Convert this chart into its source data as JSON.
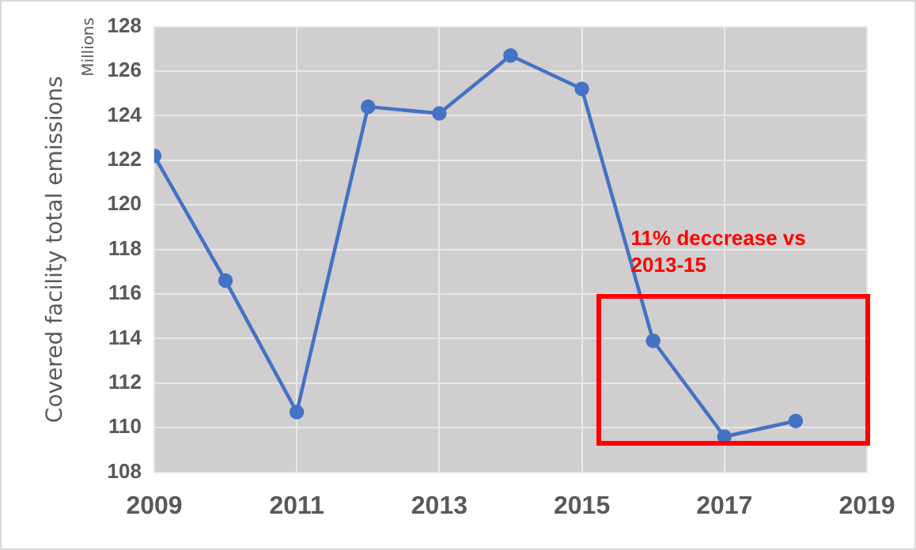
{
  "chart_data": {
    "type": "line",
    "ylabel": "Covered facility total emissions",
    "annotations": [
      "Millions",
      "11% deccrease vs 2013-15"
    ],
    "x": [
      2009,
      2010,
      2011,
      2012,
      2013,
      2014,
      2015,
      2016,
      2017,
      2018
    ],
    "series": [
      {
        "color": "#4472c4",
        "values": [
          122.2,
          116.6,
          110.7,
          124.4,
          124.1,
          126.7,
          125.2,
          113.9,
          109.6,
          110.3
        ]
      }
    ],
    "xlim": [
      2009,
      2019
    ],
    "xticks": [
      2009,
      2011,
      2013,
      2015,
      2017,
      2019
    ],
    "ylim": [
      108,
      128
    ],
    "yticks": [
      108,
      110,
      112,
      114,
      116,
      118,
      120,
      122,
      124,
      126,
      128
    ],
    "grid": true,
    "legend": false,
    "marker": "circle",
    "line_style": "solid"
  }
}
